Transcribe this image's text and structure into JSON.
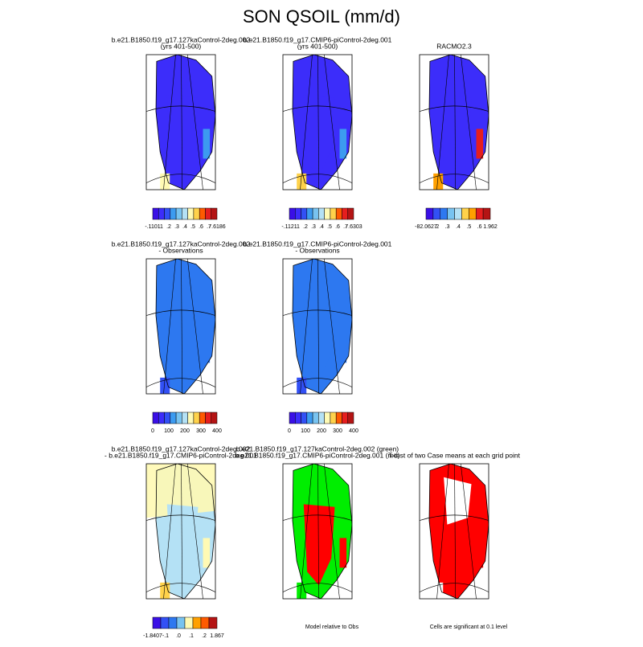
{
  "title": "SON QSOIL (mm/d)",
  "palette": [
    "#3a0fe6",
    "#3c2dfa",
    "#3250f5",
    "#2d78f0",
    "#3c9bf0",
    "#78c3f0",
    "#b4e1f5",
    "#fffab4",
    "#ffd24b",
    "#ffa000",
    "#ff5a00",
    "#e61e1e",
    "#b41414"
  ],
  "panels": [
    {
      "title": [
        "b.e21.B1850.f19_g17.127kaControl-2deg.002",
        "(yrs 401-500)"
      ],
      "colorbar": [
        "-.1101",
        ".1",
        ".2",
        ".3",
        ".4",
        ".5",
        ".6",
        ".7",
        "7.6186"
      ]
    },
    {
      "title": [
        "b.e21.B1850.f19_g17.CMIP6-piControl-2deg.001",
        "(yrs 401-500)"
      ],
      "colorbar": [
        "-.1121",
        ".1",
        ".2",
        ".3",
        ".4",
        ".5",
        ".6",
        ".7",
        "7.6303"
      ]
    },
    {
      "title": [
        "RACMO2.3"
      ],
      "colorbar": [
        "-82.0627",
        ".2",
        ".3",
        ".4",
        ".5",
        ".6",
        "1.962"
      ]
    },
    {
      "title": [
        "b.e21.B1850.f19_g17.127kaControl-2deg.002",
        "- Observations"
      ],
      "colorbar": [
        "0",
        "100",
        "200",
        "300",
        "400"
      ]
    },
    {
      "title": [
        "b.e21.B1850.f19_g17.CMIP6-piControl-2deg.001",
        "- Observations"
      ],
      "colorbar": [
        "0",
        "100",
        "200",
        "300",
        "400"
      ]
    },
    {
      "title": [
        "b.e21.B1850.f19_g17.127kaControl-2deg.002",
        "- b.e21.B1850.f19_g17.CMIP6-piControl-2deg.001"
      ],
      "colorbar": [
        "-1.8407",
        "-.1",
        ".0",
        ".1",
        ".2",
        "1.867"
      ]
    },
    {
      "title": [
        "b.e21.B1850.f19_g17.127kaControl-2deg.002 (green)",
        "b.e21.B1850.f19_g17.CMIP6-piControl-2deg.001 (red)"
      ],
      "note": "Model relative to Obs"
    },
    {
      "title": [
        "T-test of two Case means at each grid point"
      ],
      "note": "Cells are significant at 0.1 level"
    }
  ]
}
